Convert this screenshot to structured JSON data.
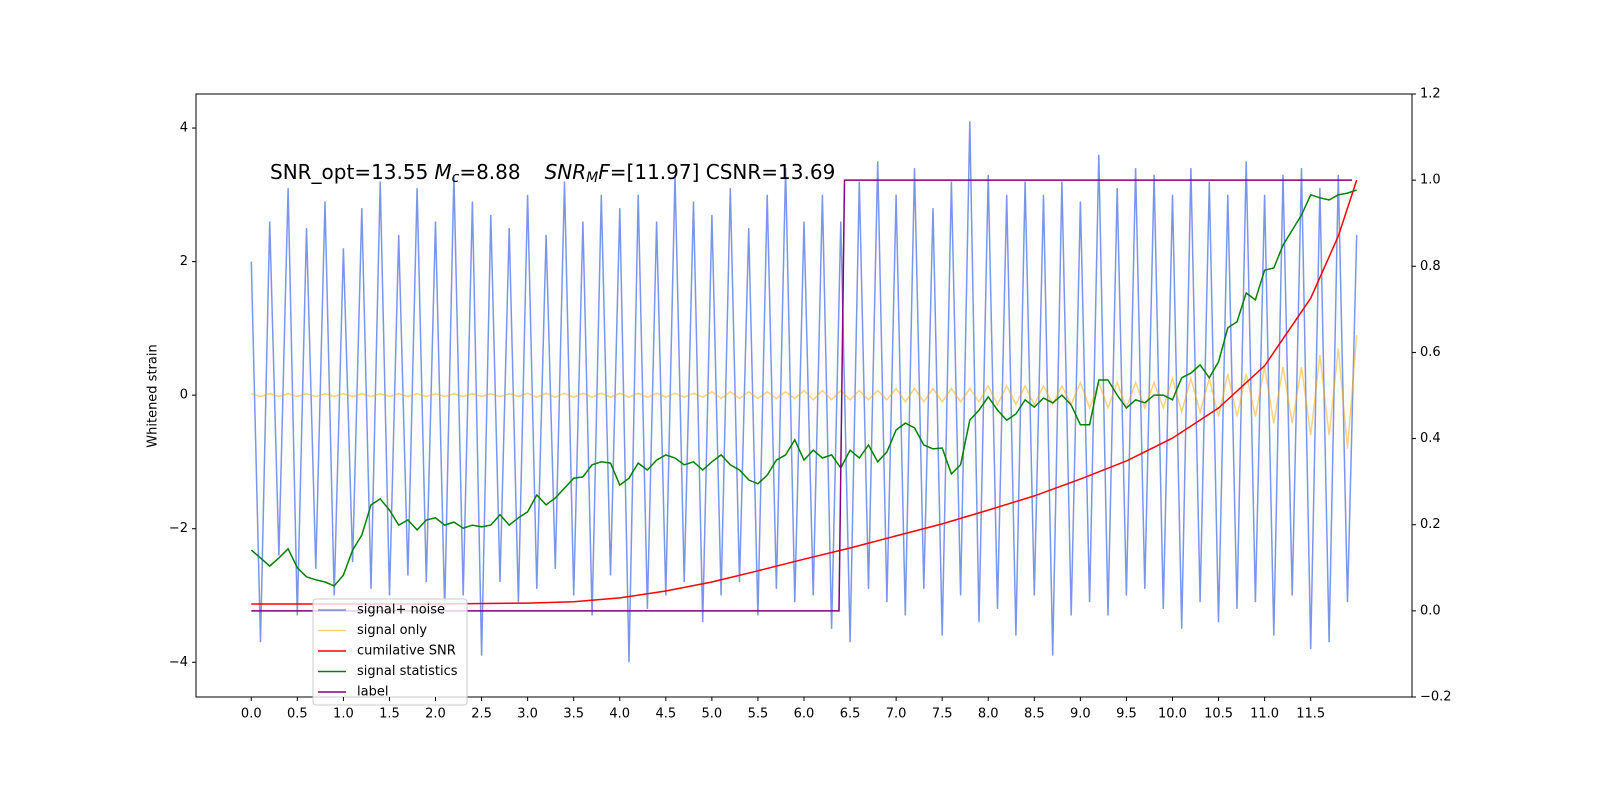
{
  "chart_data": {
    "type": "line",
    "annotation": [
      "SNR_opt=13.55",
      "M",
      "c",
      "=8.88",
      "SNR",
      "M",
      "F",
      "=[11.97] CSNR=13.69"
    ],
    "ylabel": "Whitened strain",
    "xlim": [
      -0.6,
      12.6
    ],
    "ylim": [
      -4.52,
      4.51
    ],
    "y2lim": [
      -0.2,
      1.2
    ],
    "xticks": [
      {
        "value": 0,
        "label": "0.0"
      },
      0.5,
      {
        "value": 1,
        "label": "1.0"
      },
      1.5,
      {
        "value": 2,
        "label": "2.0"
      },
      2.5,
      {
        "value": 3,
        "label": "3.0"
      },
      3.5,
      {
        "value": 4,
        "label": "4.0"
      },
      4.5,
      {
        "value": 5,
        "label": "5.0"
      },
      5.5,
      {
        "value": 6,
        "label": "6.0"
      },
      6.5,
      {
        "value": 7,
        "label": "7.0"
      },
      7.5,
      {
        "value": 8,
        "label": "8.0"
      },
      8.5,
      {
        "value": 9,
        "label": "9.0"
      },
      9.5,
      {
        "value": 10,
        "label": "10.0"
      },
      10.5,
      {
        "value": 11,
        "label": "11.0"
      },
      11.5
    ],
    "yticks": [
      {
        "value": -4,
        "label": "−4"
      },
      {
        "value": -2,
        "label": "−2"
      },
      0,
      2,
      4
    ],
    "y2ticks": [
      {
        "value": -0.2,
        "label": "−0.2"
      },
      {
        "value": 0,
        "label": "0.0"
      },
      0.2,
      0.4,
      0.6,
      0.8,
      {
        "value": 1,
        "label": "1.0"
      },
      1.2
    ],
    "legend": "lower left",
    "x": [
      0,
      0.1,
      0.2,
      0.3,
      0.4,
      0.5,
      0.6,
      0.7,
      0.8,
      0.9,
      1,
      1.1,
      1.2,
      1.3,
      1.4,
      1.5,
      1.6,
      1.7,
      1.8,
      1.9,
      2,
      2.1,
      2.2,
      2.3,
      2.4,
      2.5,
      2.6,
      2.7,
      2.8,
      2.9,
      3,
      3.1,
      3.2,
      3.3,
      3.4,
      3.5,
      3.6,
      3.7,
      3.8,
      3.9,
      4,
      4.1,
      4.2,
      4.3,
      4.4,
      4.5,
      4.6,
      4.7,
      4.8,
      4.9,
      5,
      5.1,
      5.2,
      5.3,
      5.4,
      5.5,
      5.6,
      5.7,
      5.8,
      5.9,
      6,
      6.1,
      6.2,
      6.3,
      6.4,
      6.5,
      6.6,
      6.7,
      6.8,
      6.9,
      7,
      7.1,
      7.2,
      7.3,
      7.4,
      7.5,
      7.6,
      7.7,
      7.8,
      7.9,
      8,
      8.1,
      8.2,
      8.3,
      8.4,
      8.5,
      8.6,
      8.7,
      8.8,
      8.9,
      9,
      9.1,
      9.2,
      9.3,
      9.4,
      9.5,
      9.6,
      9.7,
      9.8,
      9.9,
      10,
      10.1,
      10.2,
      10.3,
      10.4,
      10.5,
      10.6,
      10.7,
      10.8,
      10.9,
      11,
      11.1,
      11.2,
      11.3,
      11.4,
      11.5,
      11.6,
      11.7,
      11.8,
      11.9,
      12
    ],
    "series": [
      {
        "name": "signal+ noise",
        "color": "#4169e1",
        "alpha": 0.7,
        "axis": "y",
        "values": [
          2.0,
          -3.7,
          2.6,
          -2.4,
          3.1,
          -3.3,
          2.5,
          -2.6,
          2.9,
          -3.0,
          2.2,
          -2.5,
          2.8,
          -2.9,
          3.2,
          -3.0,
          2.4,
          -2.7,
          3.1,
          -2.8,
          2.6,
          -3.2,
          3.3,
          -3.0,
          2.9,
          -3.9,
          2.7,
          -2.8,
          2.5,
          -3.1,
          3.0,
          -2.9,
          2.4,
          -2.6,
          3.2,
          -3.0,
          2.6,
          -3.3,
          3.0,
          -2.7,
          2.8,
          -4.0,
          3.0,
          -3.2,
          2.6,
          -3.0,
          3.3,
          -2.8,
          2.9,
          -3.4,
          2.7,
          -3.0,
          3.1,
          -2.8,
          2.5,
          -3.3,
          3.0,
          -2.9,
          3.4,
          -3.1,
          2.6,
          -3.0,
          3.0,
          -3.5,
          2.6,
          -3.7,
          3.2,
          -2.9,
          3.5,
          -3.1,
          3.0,
          -3.3,
          3.4,
          -2.9,
          2.8,
          -3.6,
          3.2,
          -3.0,
          4.1,
          -3.4,
          3.3,
          -3.2,
          3.0,
          -3.6,
          3.2,
          -3.0,
          3.0,
          -3.9,
          3.2,
          -3.3,
          2.9,
          -3.1,
          3.6,
          -3.3,
          3.1,
          -3.0,
          3.4,
          -2.9,
          3.3,
          -3.2,
          3.0,
          -3.5,
          3.4,
          -3.1,
          3.2,
          -3.4,
          3.0,
          -3.2,
          3.5,
          -3.1,
          3.0,
          -3.6,
          3.3,
          -3.0,
          3.4,
          -3.8,
          3.1,
          -3.7,
          3.3,
          -3.1,
          2.4
        ]
      },
      {
        "name": "signal only",
        "color": "#ffa500",
        "alpha": 0.5,
        "axis": "y",
        "values": [
          0.02,
          -0.02,
          0.02,
          -0.02,
          0.02,
          -0.02,
          0.02,
          -0.02,
          0.02,
          -0.02,
          0.02,
          -0.02,
          0.02,
          -0.02,
          0.02,
          -0.02,
          0.02,
          -0.02,
          0.02,
          -0.02,
          0.02,
          -0.02,
          0.02,
          -0.02,
          0.02,
          -0.02,
          0.02,
          -0.02,
          0.02,
          -0.02,
          0.03,
          -0.03,
          0.03,
          -0.03,
          0.03,
          -0.03,
          0.03,
          -0.03,
          0.03,
          -0.03,
          0.03,
          -0.03,
          0.03,
          -0.03,
          0.03,
          -0.03,
          0.03,
          -0.03,
          0.03,
          -0.03,
          0.05,
          -0.05,
          0.05,
          -0.05,
          0.05,
          -0.05,
          0.05,
          -0.05,
          0.05,
          -0.05,
          0.07,
          -0.07,
          0.07,
          -0.07,
          0.07,
          -0.07,
          0.07,
          -0.07,
          0.07,
          -0.07,
          0.1,
          -0.1,
          0.1,
          -0.1,
          0.1,
          -0.1,
          0.1,
          -0.1,
          0.1,
          -0.1,
          0.14,
          -0.14,
          0.14,
          -0.14,
          0.14,
          -0.14,
          0.14,
          -0.14,
          0.14,
          -0.14,
          0.19,
          -0.19,
          0.19,
          -0.19,
          0.19,
          -0.19,
          0.19,
          -0.19,
          0.19,
          -0.19,
          0.25,
          -0.25,
          0.25,
          -0.25,
          0.25,
          -0.32,
          0.32,
          -0.32,
          0.32,
          -0.32,
          0.42,
          -0.42,
          0.42,
          -0.42,
          0.42,
          -0.6,
          0.6,
          -0.6,
          0.7,
          -0.8,
          0.9
        ]
      },
      {
        "name": "cumilative SNR",
        "color": "#ff0000",
        "axis": "y2",
        "x": [
          0,
          1,
          2,
          3,
          3.5,
          4,
          4.5,
          5,
          5.5,
          6,
          6.5,
          7,
          7.5,
          8,
          8.5,
          9,
          9.5,
          10,
          10.5,
          11,
          11.5,
          11.8,
          12
        ],
        "values": [
          0.016,
          0.016,
          0.016,
          0.018,
          0.021,
          0.03,
          0.046,
          0.067,
          0.093,
          0.12,
          0.146,
          0.174,
          0.202,
          0.234,
          0.267,
          0.306,
          0.348,
          0.401,
          0.471,
          0.569,
          0.726,
          0.87,
          1.0
        ]
      },
      {
        "name": "signal statistics",
        "color": "#008000",
        "axis": "y2",
        "values": [
          0.141,
          0.123,
          0.104,
          0.123,
          0.144,
          0.1,
          0.079,
          0.072,
          0.067,
          0.058,
          0.083,
          0.141,
          0.176,
          0.246,
          0.26,
          0.234,
          0.199,
          0.211,
          0.188,
          0.211,
          0.216,
          0.199,
          0.206,
          0.192,
          0.199,
          0.195,
          0.199,
          0.223,
          0.199,
          0.216,
          0.23,
          0.269,
          0.246,
          0.262,
          0.285,
          0.308,
          0.311,
          0.339,
          0.346,
          0.343,
          0.292,
          0.308,
          0.343,
          0.327,
          0.35,
          0.362,
          0.355,
          0.339,
          0.346,
          0.327,
          0.346,
          0.362,
          0.339,
          0.327,
          0.304,
          0.295,
          0.315,
          0.35,
          0.362,
          0.397,
          0.35,
          0.373,
          0.355,
          0.362,
          0.332,
          0.373,
          0.355,
          0.385,
          0.346,
          0.369,
          0.42,
          0.436,
          0.425,
          0.385,
          0.376,
          0.378,
          0.318,
          0.339,
          0.443,
          0.466,
          0.497,
          0.466,
          0.443,
          0.457,
          0.49,
          0.473,
          0.494,
          0.483,
          0.501,
          0.478,
          0.432,
          0.432,
          0.536,
          0.536,
          0.501,
          0.471,
          0.49,
          0.483,
          0.501,
          0.501,
          0.49,
          0.541,
          0.552,
          0.571,
          0.541,
          0.578,
          0.657,
          0.671,
          0.738,
          0.722,
          0.791,
          0.796,
          0.849,
          0.884,
          0.919,
          0.966,
          0.959,
          0.954,
          0.966,
          0.97,
          0.977
        ]
      },
      {
        "name": "label",
        "color": "#800080",
        "axis": "y2",
        "x": [
          0,
          6.38,
          6.44,
          11.95
        ],
        "values": [
          0,
          0,
          1,
          1
        ]
      }
    ]
  }
}
